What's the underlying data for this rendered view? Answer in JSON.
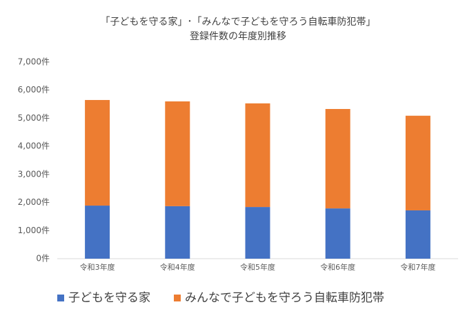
{
  "chart_data": {
    "type": "stacked_bar",
    "title": "「子どもを守る家」･「みんなで子どもを守ろう自転車防犯帯」",
    "subtitle": "登録件数の年度別推移",
    "categories": [
      "令和3年度",
      "令和4年度",
      "令和5年度",
      "令和6年度",
      "令和7年度"
    ],
    "series": [
      {
        "name": "子どもを守る家",
        "color": "#4472c4",
        "values": [
          1890,
          1870,
          1840,
          1790,
          1720
        ]
      },
      {
        "name": "みんなで子どもを守ろう自転車防犯帯",
        "color": "#ed7d31",
        "values": [
          3760,
          3730,
          3690,
          3540,
          3370
        ]
      }
    ],
    "ylim": [
      0,
      7000
    ],
    "yticks": [
      {
        "value": 0,
        "label": "0件"
      },
      {
        "value": 1000,
        "label": "1,000件"
      },
      {
        "value": 2000,
        "label": "2,000件"
      },
      {
        "value": 3000,
        "label": "3,000件"
      },
      {
        "value": 4000,
        "label": "4,000件"
      },
      {
        "value": 5000,
        "label": "5,000件"
      },
      {
        "value": 6000,
        "label": "6,000件"
      },
      {
        "value": 7000,
        "label": "7,000件"
      }
    ],
    "grid": false,
    "legend": "bottom"
  }
}
